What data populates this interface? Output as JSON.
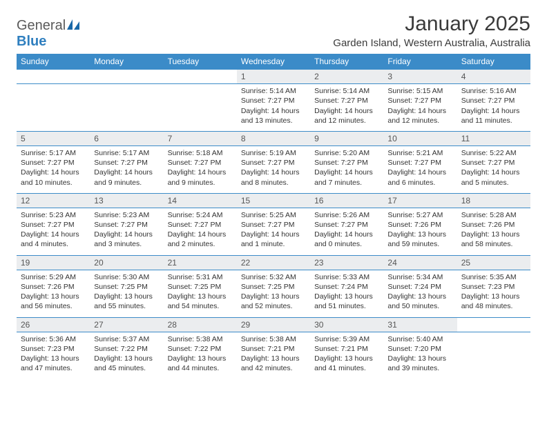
{
  "logo": {
    "general": "General",
    "blue": "Blue"
  },
  "title": "January 2025",
  "subtitle": "Garden Island, Western Australia, Australia",
  "dayHeaders": [
    "Sunday",
    "Monday",
    "Tuesday",
    "Wednesday",
    "Thursday",
    "Friday",
    "Saturday"
  ],
  "colors": {
    "headerBar": "#3b8bc8",
    "dayNumBg": "#ebedef",
    "ruleLine": "#3b8bc8",
    "text": "#333333",
    "logoGray": "#5a5a5a",
    "logoBlue": "#2f7fbf",
    "background": "#ffffff"
  },
  "fontSizes": {
    "title": 30,
    "subtitle": 15,
    "dayHeader": 12,
    "dayNum": 12,
    "body": 10.5
  },
  "weeks": [
    [
      null,
      null,
      null,
      {
        "n": "1",
        "sunrise": "5:14 AM",
        "sunset": "7:27 PM",
        "daylight": "14 hours and 13 minutes."
      },
      {
        "n": "2",
        "sunrise": "5:14 AM",
        "sunset": "7:27 PM",
        "daylight": "14 hours and 12 minutes."
      },
      {
        "n": "3",
        "sunrise": "5:15 AM",
        "sunset": "7:27 PM",
        "daylight": "14 hours and 12 minutes."
      },
      {
        "n": "4",
        "sunrise": "5:16 AM",
        "sunset": "7:27 PM",
        "daylight": "14 hours and 11 minutes."
      }
    ],
    [
      {
        "n": "5",
        "sunrise": "5:17 AM",
        "sunset": "7:27 PM",
        "daylight": "14 hours and 10 minutes."
      },
      {
        "n": "6",
        "sunrise": "5:17 AM",
        "sunset": "7:27 PM",
        "daylight": "14 hours and 9 minutes."
      },
      {
        "n": "7",
        "sunrise": "5:18 AM",
        "sunset": "7:27 PM",
        "daylight": "14 hours and 9 minutes."
      },
      {
        "n": "8",
        "sunrise": "5:19 AM",
        "sunset": "7:27 PM",
        "daylight": "14 hours and 8 minutes."
      },
      {
        "n": "9",
        "sunrise": "5:20 AM",
        "sunset": "7:27 PM",
        "daylight": "14 hours and 7 minutes."
      },
      {
        "n": "10",
        "sunrise": "5:21 AM",
        "sunset": "7:27 PM",
        "daylight": "14 hours and 6 minutes."
      },
      {
        "n": "11",
        "sunrise": "5:22 AM",
        "sunset": "7:27 PM",
        "daylight": "14 hours and 5 minutes."
      }
    ],
    [
      {
        "n": "12",
        "sunrise": "5:23 AM",
        "sunset": "7:27 PM",
        "daylight": "14 hours and 4 minutes."
      },
      {
        "n": "13",
        "sunrise": "5:23 AM",
        "sunset": "7:27 PM",
        "daylight": "14 hours and 3 minutes."
      },
      {
        "n": "14",
        "sunrise": "5:24 AM",
        "sunset": "7:27 PM",
        "daylight": "14 hours and 2 minutes."
      },
      {
        "n": "15",
        "sunrise": "5:25 AM",
        "sunset": "7:27 PM",
        "daylight": "14 hours and 1 minute."
      },
      {
        "n": "16",
        "sunrise": "5:26 AM",
        "sunset": "7:27 PM",
        "daylight": "14 hours and 0 minutes."
      },
      {
        "n": "17",
        "sunrise": "5:27 AM",
        "sunset": "7:26 PM",
        "daylight": "13 hours and 59 minutes."
      },
      {
        "n": "18",
        "sunrise": "5:28 AM",
        "sunset": "7:26 PM",
        "daylight": "13 hours and 58 minutes."
      }
    ],
    [
      {
        "n": "19",
        "sunrise": "5:29 AM",
        "sunset": "7:26 PM",
        "daylight": "13 hours and 56 minutes."
      },
      {
        "n": "20",
        "sunrise": "5:30 AM",
        "sunset": "7:25 PM",
        "daylight": "13 hours and 55 minutes."
      },
      {
        "n": "21",
        "sunrise": "5:31 AM",
        "sunset": "7:25 PM",
        "daylight": "13 hours and 54 minutes."
      },
      {
        "n": "22",
        "sunrise": "5:32 AM",
        "sunset": "7:25 PM",
        "daylight": "13 hours and 52 minutes."
      },
      {
        "n": "23",
        "sunrise": "5:33 AM",
        "sunset": "7:24 PM",
        "daylight": "13 hours and 51 minutes."
      },
      {
        "n": "24",
        "sunrise": "5:34 AM",
        "sunset": "7:24 PM",
        "daylight": "13 hours and 50 minutes."
      },
      {
        "n": "25",
        "sunrise": "5:35 AM",
        "sunset": "7:23 PM",
        "daylight": "13 hours and 48 minutes."
      }
    ],
    [
      {
        "n": "26",
        "sunrise": "5:36 AM",
        "sunset": "7:23 PM",
        "daylight": "13 hours and 47 minutes."
      },
      {
        "n": "27",
        "sunrise": "5:37 AM",
        "sunset": "7:22 PM",
        "daylight": "13 hours and 45 minutes."
      },
      {
        "n": "28",
        "sunrise": "5:38 AM",
        "sunset": "7:22 PM",
        "daylight": "13 hours and 44 minutes."
      },
      {
        "n": "29",
        "sunrise": "5:38 AM",
        "sunset": "7:21 PM",
        "daylight": "13 hours and 42 minutes."
      },
      {
        "n": "30",
        "sunrise": "5:39 AM",
        "sunset": "7:21 PM",
        "daylight": "13 hours and 41 minutes."
      },
      {
        "n": "31",
        "sunrise": "5:40 AM",
        "sunset": "7:20 PM",
        "daylight": "13 hours and 39 minutes."
      },
      null
    ]
  ],
  "labels": {
    "sunrise": "Sunrise: ",
    "sunset": "Sunset: ",
    "daylight": "Daylight: "
  }
}
